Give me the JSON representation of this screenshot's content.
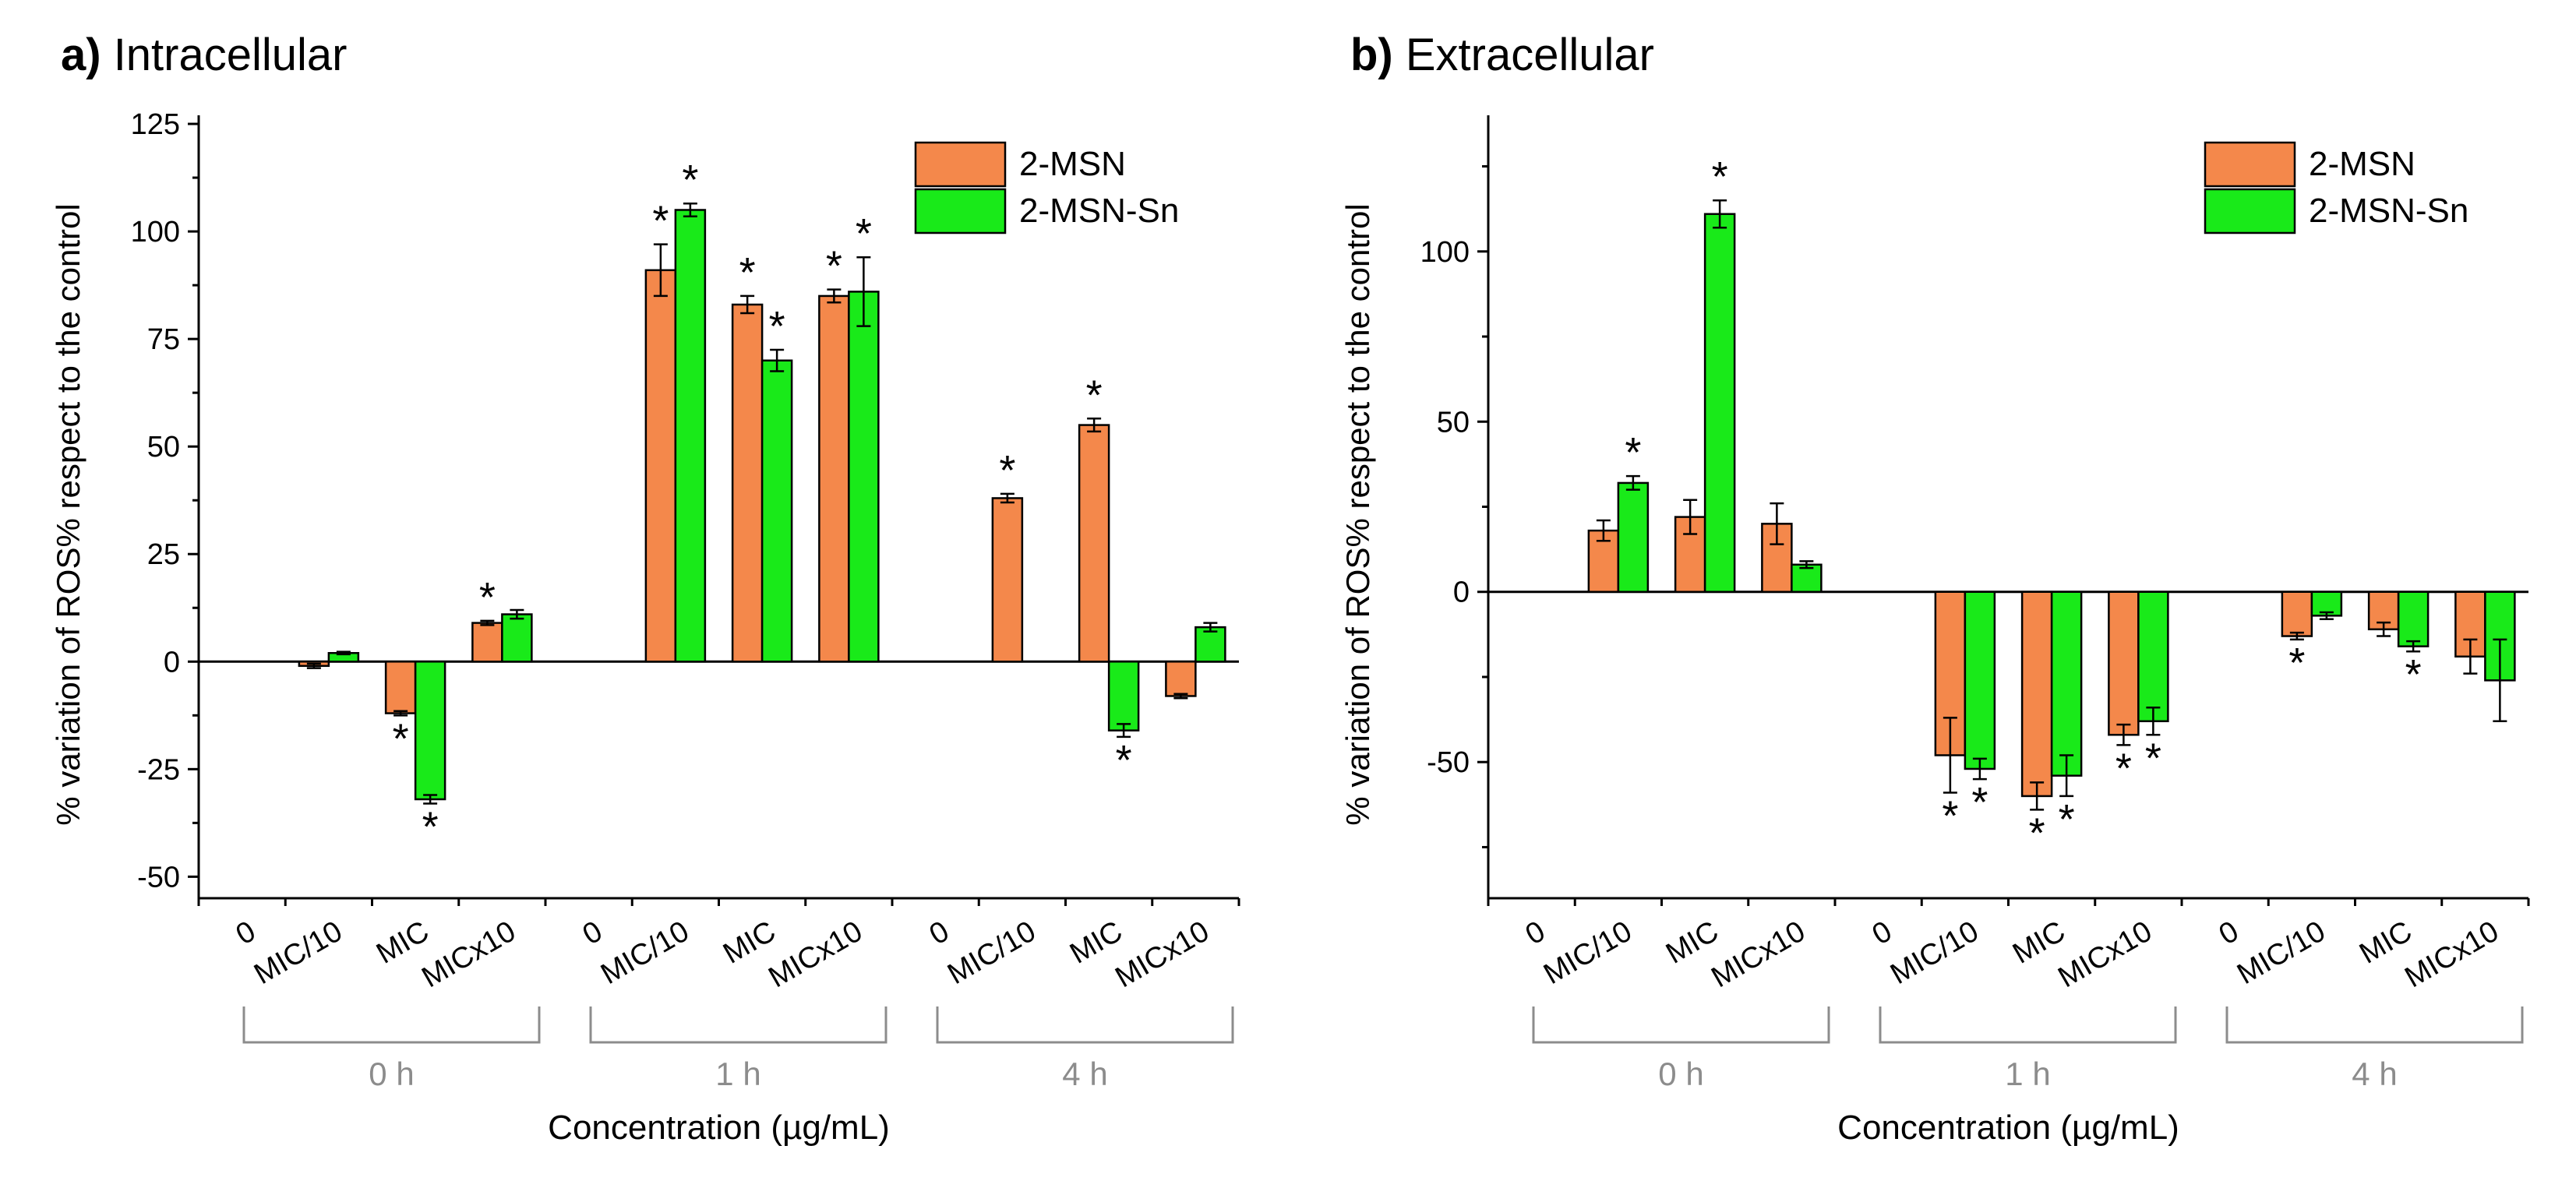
{
  "colors": {
    "series_2msn": "#f4884b",
    "series_2msn_sn": "#19ea19",
    "group_label": "#8c8c8c",
    "axis": "#000000"
  },
  "chart_data": [
    {
      "type": "bar",
      "panel_letter": "a)",
      "title": "Intracellular",
      "xlabel": "Concentration (µg/mL)",
      "ylabel": "% variation of ROS% respect to the control",
      "ylim": [
        -55,
        127
      ],
      "yticks": [
        -50,
        -25,
        0,
        25,
        50,
        75,
        100,
        125
      ],
      "minor_ytick_step": 12.5,
      "grid": false,
      "legend_position": "top-right",
      "groups": [
        "0 h",
        "1 h",
        "4 h"
      ],
      "categories": [
        "0",
        "MIC/10",
        "MIC",
        "MICx10"
      ],
      "series": [
        {
          "name": "2-MSN",
          "color": "#f4884b",
          "values": [
            [
              0,
              -1,
              -12,
              9
            ],
            [
              0,
              91,
              83,
              85
            ],
            [
              0,
              38,
              55,
              -8
            ]
          ],
          "errors": [
            [
              0,
              0.5,
              0.5,
              0.5
            ],
            [
              0,
              6,
              2,
              1.5
            ],
            [
              0,
              1,
              1.5,
              0.5
            ]
          ],
          "significant": [
            [
              false,
              false,
              true,
              true
            ],
            [
              false,
              true,
              true,
              true
            ],
            [
              false,
              true,
              true,
              false
            ]
          ]
        },
        {
          "name": "2-MSN-Sn",
          "color": "#19ea19",
          "values": [
            [
              0,
              2,
              -32,
              11
            ],
            [
              0,
              105,
              70,
              86
            ],
            [
              0,
              0,
              -16,
              8
            ]
          ],
          "errors": [
            [
              0,
              0.3,
              1,
              1
            ],
            [
              0,
              1.5,
              2.5,
              8
            ],
            [
              0,
              0,
              1.5,
              1
            ]
          ],
          "significant": [
            [
              false,
              false,
              true,
              false
            ],
            [
              false,
              true,
              true,
              true
            ],
            [
              false,
              false,
              true,
              false
            ]
          ]
        }
      ],
      "significance_marker": "*"
    },
    {
      "type": "bar",
      "panel_letter": "b)",
      "title": "Extracellular",
      "xlabel": "Concentration (µg/mL)",
      "ylabel": "% variation of ROS% respect to the control",
      "ylim": [
        -90,
        140
      ],
      "yticks": [
        -50,
        0,
        50,
        100
      ],
      "minor_ytick_step": 25,
      "grid": false,
      "legend_position": "top-right",
      "groups": [
        "0 h",
        "1 h",
        "4 h"
      ],
      "categories": [
        "0",
        "MIC/10",
        "MIC",
        "MICx10"
      ],
      "series": [
        {
          "name": "2-MSN",
          "color": "#f4884b",
          "values": [
            [
              0,
              18,
              22,
              20
            ],
            [
              0,
              -48,
              -60,
              -42
            ],
            [
              0,
              -13,
              -11,
              -19
            ]
          ],
          "errors": [
            [
              0,
              3,
              5,
              6
            ],
            [
              0,
              11,
              4,
              3
            ],
            [
              0,
              1,
              2,
              5
            ]
          ],
          "significant": [
            [
              false,
              false,
              false,
              false
            ],
            [
              false,
              true,
              true,
              true
            ],
            [
              false,
              true,
              false,
              false
            ]
          ]
        },
        {
          "name": "2-MSN-Sn",
          "color": "#19ea19",
          "values": [
            [
              0,
              32,
              111,
              8
            ],
            [
              0,
              -52,
              -54,
              -38
            ],
            [
              0,
              -7,
              -16,
              -26
            ]
          ],
          "errors": [
            [
              0,
              2,
              4,
              1
            ],
            [
              0,
              3,
              6,
              4
            ],
            [
              0,
              1,
              1.5,
              12
            ]
          ],
          "significant": [
            [
              false,
              true,
              true,
              false
            ],
            [
              false,
              true,
              true,
              true
            ],
            [
              false,
              false,
              true,
              false
            ]
          ]
        }
      ],
      "significance_marker": "*"
    }
  ]
}
